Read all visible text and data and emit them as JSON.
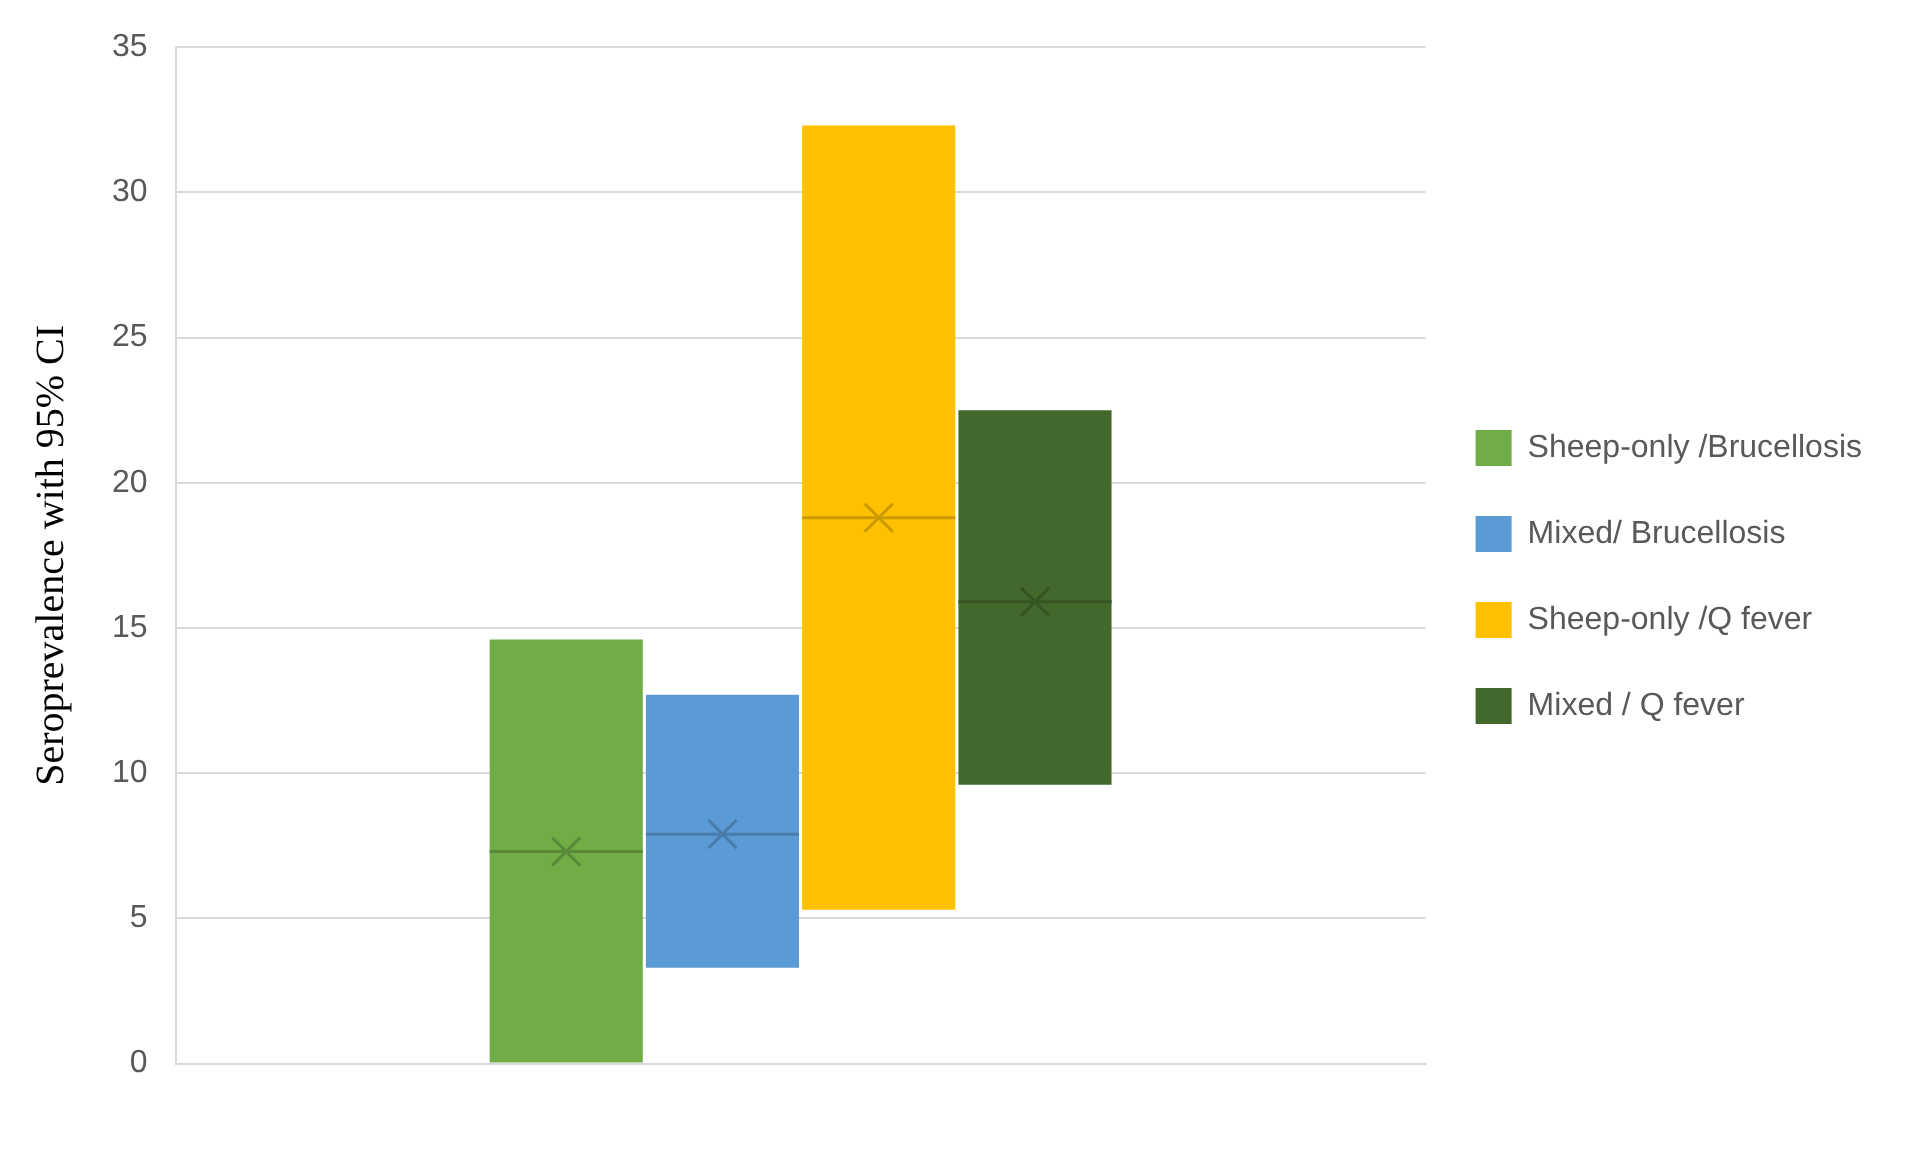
{
  "chart_data": {
    "type": "box",
    "ylabel": "Seroprevalence with 95% CI",
    "categories": [
      null
    ],
    "ylim": [
      0,
      35
    ],
    "yticks": [
      0,
      5,
      10,
      15,
      20,
      25,
      30,
      35
    ],
    "grid": "y",
    "legend": "right",
    "series": [
      {
        "name": "Sheep-only /Brucellosis",
        "color": "#70ad47",
        "boxes": [
          {
            "low": 0,
            "q1": 0,
            "median": 7.3,
            "q3": 14.6,
            "high": 14.6,
            "mean": 7.3
          }
        ]
      },
      {
        "name": "Mixed/ Brucellosis",
        "color": "#5b9bd5",
        "boxes": [
          {
            "low": 3.3,
            "q1": 3.3,
            "median": 7.9,
            "q3": 12.7,
            "high": 12.7,
            "mean": 7.9
          }
        ]
      },
      {
        "name": "Sheep-only /Q fever",
        "color": "#ffc000",
        "boxes": [
          {
            "low": 5.3,
            "q1": 5.3,
            "median": 18.8,
            "q3": 32.3,
            "high": 32.3,
            "mean": 18.8
          }
        ]
      },
      {
        "name": "Mixed / Q fever",
        "color": "#43682b",
        "boxes": [
          {
            "low": 9.6,
            "q1": 9.6,
            "median": 15.9,
            "q3": 22.5,
            "high": 22.5,
            "mean": 15.9
          }
        ]
      }
    ]
  }
}
